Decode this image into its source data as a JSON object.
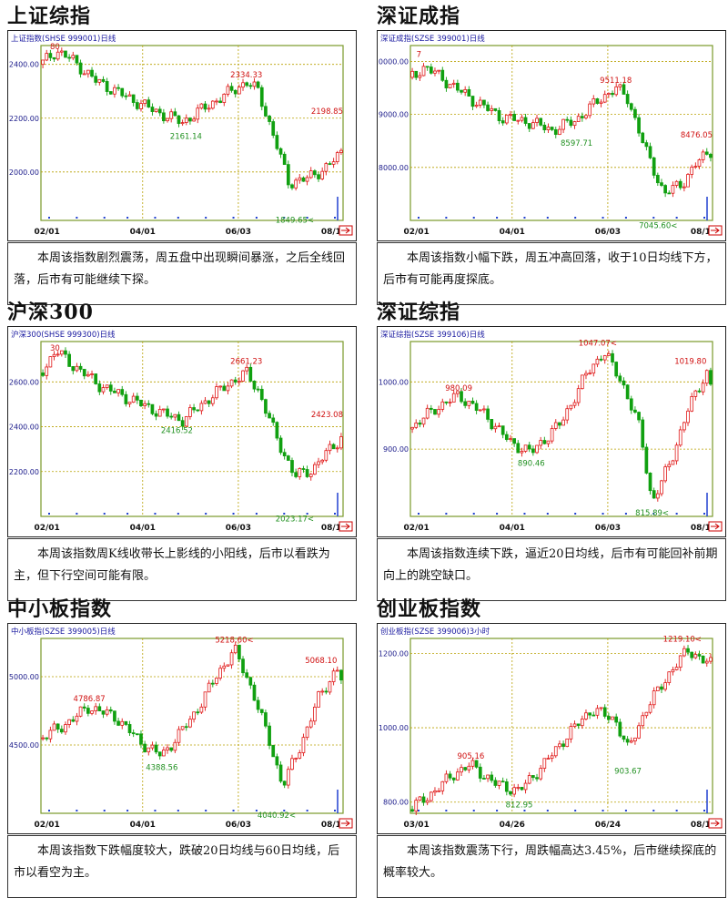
{
  "panels": [
    {
      "title": "上证综指",
      "label": "上证指数(SHSE 999001)日线",
      "description": "本周该指数剧烈震荡，周五盘中出现瞬间暴涨，之后全线回落，后市有可能继续下探。"
    },
    {
      "title": "深证成指",
      "label": "深证成指(SZSE 399001)日线",
      "description": "本周该指数小幅下跌，周五冲高回落，收于10日均线下方，后市有可能再度探底。"
    },
    {
      "title": "沪深300",
      "label": "沪深300(SHSE 999300)日线",
      "description": "本周该指数周K线收带长上影线的小阳线，后市以看跌为主，但下行空间可能有限。"
    },
    {
      "title": "深证综指",
      "label": "深证综指(SZSE 399106)日线",
      "description": "本周该指数连续下跌，逼近20日均线，后市有可能回补前期向上的跳空缺口。"
    },
    {
      "title": "中小板指数",
      "label": "中小板指(SZSE 399005)日线",
      "description": "本周该指数下跌幅度较大，跌破20日均线与60日均线，后市以看空为主。"
    },
    {
      "title": "创业板指数",
      "label": "创业板指(SZSE 399006)3小时",
      "description": "本周该指数震荡下行，周跌幅高达3.45%，后市继续探底的概率较大。"
    }
  ],
  "chart_data": [
    {
      "type": "candlestick",
      "name": "上证综指",
      "x_ticks": [
        "02/01",
        "04/01",
        "06/03",
        "08/16"
      ],
      "y_ticks": [
        "2400.00",
        "2200.00",
        "2000.00"
      ],
      "y_tick_values": [
        2400,
        2200,
        2000
      ],
      "ylim": [
        1820,
        2470
      ],
      "close_path": [
        [
          0,
          2400
        ],
        [
          0.05,
          2450
        ],
        [
          0.1,
          2420
        ],
        [
          0.18,
          2340
        ],
        [
          0.3,
          2270
        ],
        [
          0.4,
          2215
        ],
        [
          0.47,
          2185
        ],
        [
          0.55,
          2245
        ],
        [
          0.63,
          2300
        ],
        [
          0.68,
          2334
        ],
        [
          0.72,
          2300
        ],
        [
          0.78,
          2100
        ],
        [
          0.82,
          1960
        ],
        [
          0.88,
          1975
        ],
        [
          0.95,
          2020
        ],
        [
          1,
          2080
        ]
      ],
      "annotations": [
        {
          "text": "80",
          "x": 0.03,
          "y": 2440,
          "color": "red"
        },
        {
          "text": "2334.33",
          "x": 0.68,
          "y": 2334,
          "color": "red"
        },
        {
          "text": "2161.14",
          "x": 0.48,
          "y": 2161,
          "color": "green"
        },
        {
          "text": "2198.85",
          "x": 1.0,
          "y": 2199,
          "color": "red"
        },
        {
          "text": "1849.65<",
          "x": 0.84,
          "y": 1849,
          "color": "green"
        }
      ]
    },
    {
      "type": "candlestick",
      "name": "深证成指",
      "x_ticks": [
        "02/01",
        "04/01",
        "06/03",
        "08/16"
      ],
      "y_ticks": [
        "10000.00",
        "9000.00",
        "8000.00"
      ],
      "y_tick_values": [
        10000,
        9000,
        8000
      ],
      "ylim": [
        7000,
        10300
      ],
      "close_path": [
        [
          0,
          9700
        ],
        [
          0.05,
          9900
        ],
        [
          0.1,
          9700
        ],
        [
          0.2,
          9300
        ],
        [
          0.3,
          8950
        ],
        [
          0.4,
          8850
        ],
        [
          0.47,
          8700
        ],
        [
          0.55,
          8900
        ],
        [
          0.63,
          9300
        ],
        [
          0.68,
          9500
        ],
        [
          0.72,
          9300
        ],
        [
          0.78,
          8300
        ],
        [
          0.84,
          7500
        ],
        [
          0.9,
          7700
        ],
        [
          0.95,
          8100
        ],
        [
          1,
          8350
        ]
      ],
      "annotations": [
        {
          "text": "7",
          "x": 0.02,
          "y": 10000,
          "color": "red"
        },
        {
          "text": "9511.18",
          "x": 0.68,
          "y": 9511,
          "color": "red"
        },
        {
          "text": "8597.71",
          "x": 0.55,
          "y": 8598,
          "color": "green"
        },
        {
          "text": "8476.05",
          "x": 1.0,
          "y": 8476,
          "color": "red"
        },
        {
          "text": "7045.60<",
          "x": 0.82,
          "y": 7046,
          "color": "green"
        }
      ]
    },
    {
      "type": "candlestick",
      "name": "沪深300",
      "x_ticks": [
        "02/01",
        "04/01",
        "06/03",
        "08/16"
      ],
      "y_ticks": [
        "2600.00",
        "2400.00",
        "2200.00"
      ],
      "y_tick_values": [
        2600,
        2400,
        2200
      ],
      "ylim": [
        2000,
        2780
      ],
      "close_path": [
        [
          0,
          2640
        ],
        [
          0.05,
          2740
        ],
        [
          0.1,
          2680
        ],
        [
          0.2,
          2580
        ],
        [
          0.3,
          2520
        ],
        [
          0.4,
          2460
        ],
        [
          0.47,
          2430
        ],
        [
          0.55,
          2520
        ],
        [
          0.63,
          2600
        ],
        [
          0.68,
          2640
        ],
        [
          0.72,
          2560
        ],
        [
          0.78,
          2350
        ],
        [
          0.84,
          2180
        ],
        [
          0.9,
          2210
        ],
        [
          0.95,
          2290
        ],
        [
          1,
          2360
        ]
      ],
      "annotations": [
        {
          "text": "30",
          "x": 0.03,
          "y": 2720,
          "color": "red"
        },
        {
          "text": "2661.23",
          "x": 0.68,
          "y": 2661,
          "color": "red"
        },
        {
          "text": "2416.52",
          "x": 0.45,
          "y": 2416,
          "color": "green"
        },
        {
          "text": "2423.08",
          "x": 1.0,
          "y": 2423,
          "color": "red"
        },
        {
          "text": "2023.17<",
          "x": 0.84,
          "y": 2023,
          "color": "green"
        }
      ]
    },
    {
      "type": "candlestick",
      "name": "深证综指",
      "x_ticks": [
        "02/01",
        "04/01",
        "06/03",
        "08/16"
      ],
      "y_ticks": [
        "1000.00",
        "900.00"
      ],
      "y_tick_values": [
        1000,
        900
      ],
      "ylim": [
        800,
        1060
      ],
      "close_path": [
        [
          0,
          930
        ],
        [
          0.08,
          960
        ],
        [
          0.16,
          980
        ],
        [
          0.25,
          950
        ],
        [
          0.33,
          910
        ],
        [
          0.4,
          895
        ],
        [
          0.5,
          940
        ],
        [
          0.58,
          1010
        ],
        [
          0.64,
          1045
        ],
        [
          0.7,
          1000
        ],
        [
          0.76,
          930
        ],
        [
          0.8,
          820
        ],
        [
          0.86,
          880
        ],
        [
          0.92,
          960
        ],
        [
          0.98,
          1015
        ],
        [
          1,
          985
        ]
      ],
      "annotations": [
        {
          "text": "980.09",
          "x": 0.16,
          "y": 980,
          "color": "red"
        },
        {
          "text": "1047.07<",
          "x": 0.62,
          "y": 1047,
          "color": "red"
        },
        {
          "text": "890.46",
          "x": 0.4,
          "y": 890,
          "color": "green"
        },
        {
          "text": "1019.80",
          "x": 0.98,
          "y": 1020,
          "color": "red"
        },
        {
          "text": "815.89<",
          "x": 0.8,
          "y": 816,
          "color": "green"
        }
      ]
    },
    {
      "type": "candlestick",
      "name": "中小板指数",
      "x_ticks": [
        "02/01",
        "04/01",
        "06/03",
        "08/16"
      ],
      "y_ticks": [
        "5000.00",
        "4500.00"
      ],
      "y_tick_values": [
        5000,
        4500
      ],
      "ylim": [
        4000,
        5280
      ],
      "close_path": [
        [
          0,
          4550
        ],
        [
          0.08,
          4650
        ],
        [
          0.16,
          4780
        ],
        [
          0.25,
          4700
        ],
        [
          0.33,
          4520
        ],
        [
          0.4,
          4420
        ],
        [
          0.5,
          4700
        ],
        [
          0.58,
          5000
        ],
        [
          0.64,
          5200
        ],
        [
          0.7,
          4900
        ],
        [
          0.76,
          4500
        ],
        [
          0.8,
          4200
        ],
        [
          0.86,
          4500
        ],
        [
          0.92,
          4850
        ],
        [
          0.98,
          5060
        ],
        [
          1,
          4950
        ]
      ],
      "annotations": [
        {
          "text": "4786.87",
          "x": 0.16,
          "y": 4787,
          "color": "red"
        },
        {
          "text": "5218.60<",
          "x": 0.64,
          "y": 5218,
          "color": "red"
        },
        {
          "text": "4388.56",
          "x": 0.4,
          "y": 4389,
          "color": "green"
        },
        {
          "text": "5068.10",
          "x": 0.98,
          "y": 5068,
          "color": "red"
        },
        {
          "text": "4040.92<",
          "x": 0.78,
          "y": 4041,
          "color": "green"
        }
      ]
    },
    {
      "type": "candlestick",
      "name": "创业板指数",
      "x_ticks": [
        "03/01",
        "04/26",
        "06/24",
        "08/16"
      ],
      "y_ticks": [
        "1200.00",
        "1000.00",
        "800.00"
      ],
      "y_tick_values": [
        1200,
        1000,
        800
      ],
      "ylim": [
        770,
        1240
      ],
      "close_path": [
        [
          0,
          780
        ],
        [
          0.08,
          830
        ],
        [
          0.15,
          880
        ],
        [
          0.2,
          900
        ],
        [
          0.28,
          850
        ],
        [
          0.36,
          830
        ],
        [
          0.44,
          900
        ],
        [
          0.52,
          980
        ],
        [
          0.6,
          1050
        ],
        [
          0.68,
          1020
        ],
        [
          0.72,
          940
        ],
        [
          0.78,
          1050
        ],
        [
          0.86,
          1150
        ],
        [
          0.92,
          1210
        ],
        [
          0.97,
          1180
        ],
        [
          1,
          1170
        ]
      ],
      "annotations": [
        {
          "text": "905.16",
          "x": 0.2,
          "y": 905,
          "color": "red"
        },
        {
          "text": "1219.10<",
          "x": 0.9,
          "y": 1219,
          "color": "red"
        },
        {
          "text": "812.95",
          "x": 0.36,
          "y": 813,
          "color": "green"
        },
        {
          "text": "903.67",
          "x": 0.72,
          "y": 904,
          "color": "green"
        }
      ]
    }
  ]
}
